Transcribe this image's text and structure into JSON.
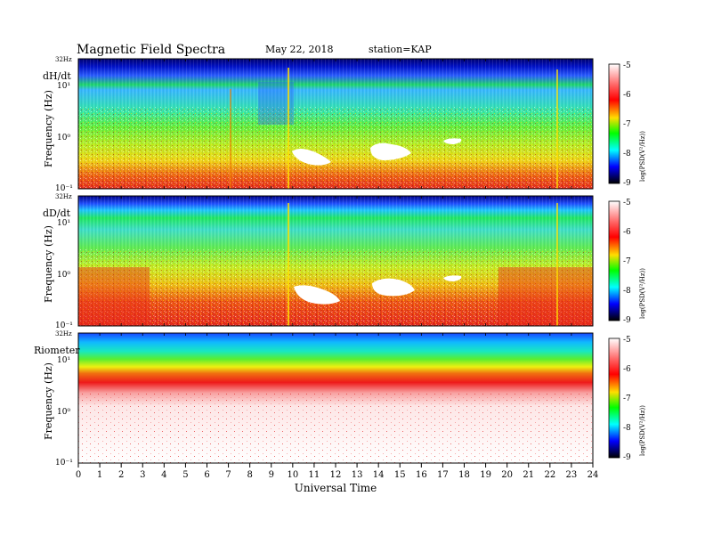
{
  "header": {
    "title": "Magnetic  Field  Spectra",
    "date": "May 22, 2018",
    "station": "station=KAP"
  },
  "chart_data": {
    "type": "heatmap",
    "panels": [
      {
        "label": "dH/dt",
        "ylabel": "Frequency  (Hz)",
        "ytick_labels": [
          "32Hz",
          "10¹",
          "10⁰",
          "10⁻¹"
        ],
        "colorbar_label": "log(PSD(V²/Hz))",
        "colorbar_ticks": [
          "-5",
          "-6",
          "-7",
          "-8",
          "-9"
        ]
      },
      {
        "label": "dD/dt",
        "ylabel": "Frequency  (Hz)",
        "ytick_labels": [
          "32Hz",
          "10¹",
          "10⁰",
          "10⁻¹"
        ],
        "colorbar_label": "log(PSD(V²/Hz))",
        "colorbar_ticks": [
          "-5",
          "-6",
          "-7",
          "-8",
          "-9"
        ]
      },
      {
        "label": "Riometer",
        "ylabel": "Frequency  (Hz)",
        "ytick_labels": [
          "32Hz",
          "10¹",
          "10⁰",
          "10⁻¹"
        ],
        "colorbar_label": "log(PSD(V²/Hz))",
        "colorbar_ticks": [
          "-5",
          "-6",
          "-7",
          "-8",
          "-9"
        ]
      }
    ],
    "xlabel": "Universal Time",
    "x_ticks": [
      "0",
      "1",
      "2",
      "3",
      "4",
      "5",
      "6",
      "7",
      "8",
      "9",
      "10",
      "11",
      "12",
      "13",
      "14",
      "15",
      "16",
      "17",
      "18",
      "19",
      "20",
      "21",
      "22",
      "23",
      "24"
    ],
    "xlim": [
      0,
      24
    ],
    "ylim": [
      0.1,
      32
    ],
    "y_scale": "log",
    "zlim": [
      -9,
      -5
    ],
    "colorscale": [
      "#000000",
      "#0000ff",
      "#00ffff",
      "#00ff00",
      "#ffff00",
      "#ff0000",
      "#ffffff"
    ]
  }
}
